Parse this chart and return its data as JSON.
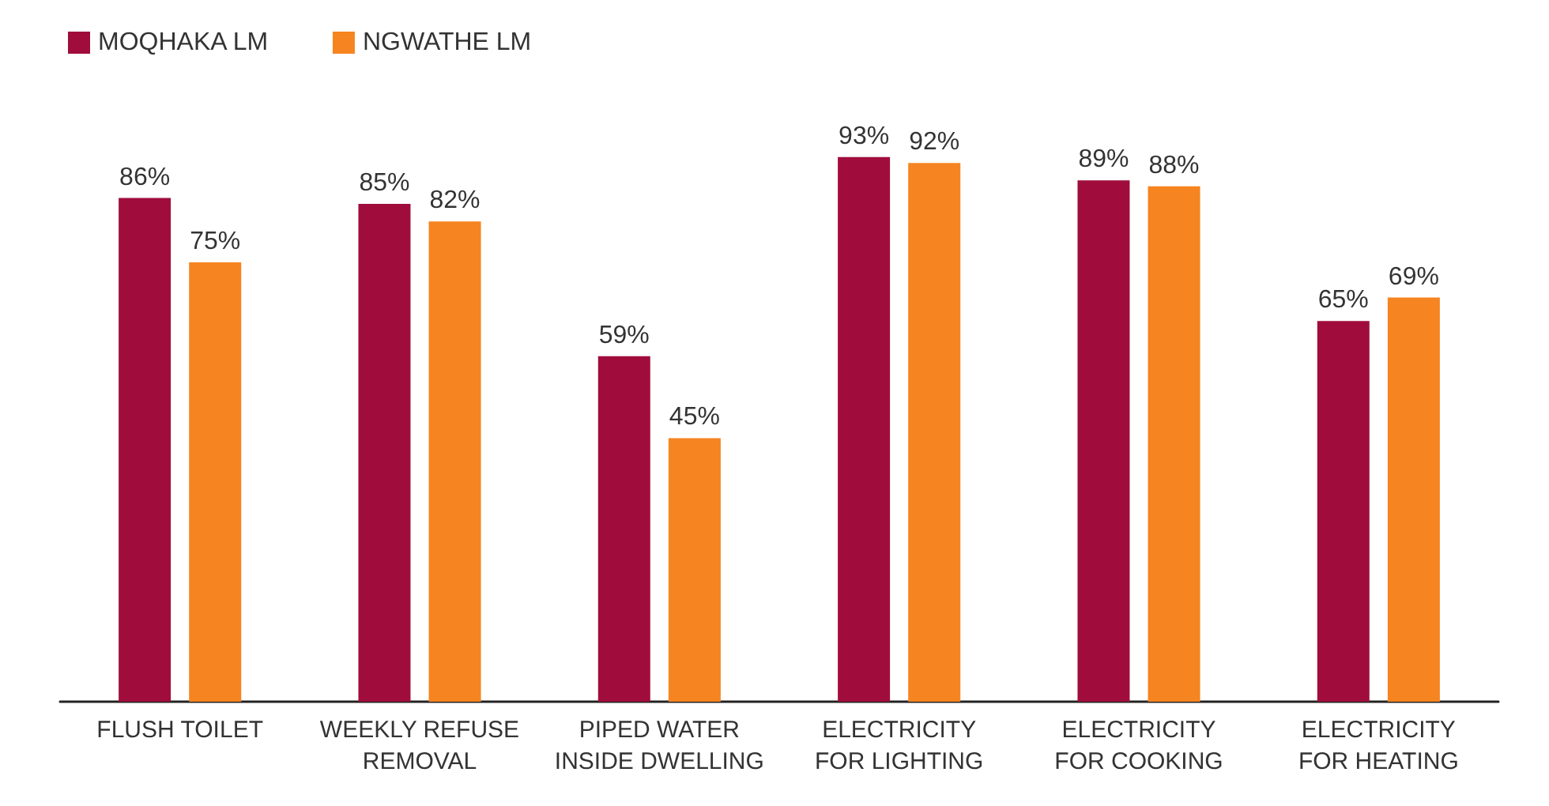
{
  "chart_data": {
    "type": "bar",
    "categories": [
      "FLUSH TOILET",
      "WEEKLY REFUSE\nREMOVAL",
      "PIPED WATER\nINSIDE DWELLING",
      "ELECTRICITY\nFOR LIGHTING",
      "ELECTRICITY\nFOR COOKING",
      "ELECTRICITY\nFOR HEATING"
    ],
    "series": [
      {
        "name": "MOQHAKA LM",
        "color": "#a00d3c",
        "values": [
          86,
          85,
          59,
          93,
          89,
          65
        ],
        "value_labels": [
          "86%",
          "85%",
          "59%",
          "93%",
          "89%",
          "65%"
        ]
      },
      {
        "name": "NGWATHE LM",
        "color": "#f68420",
        "values": [
          75,
          82,
          45,
          92,
          88,
          69
        ],
        "value_labels": [
          "75%",
          "82%",
          "45%",
          "92%",
          "88%",
          "69%"
        ]
      }
    ],
    "grid": false,
    "legend": "top left"
  }
}
